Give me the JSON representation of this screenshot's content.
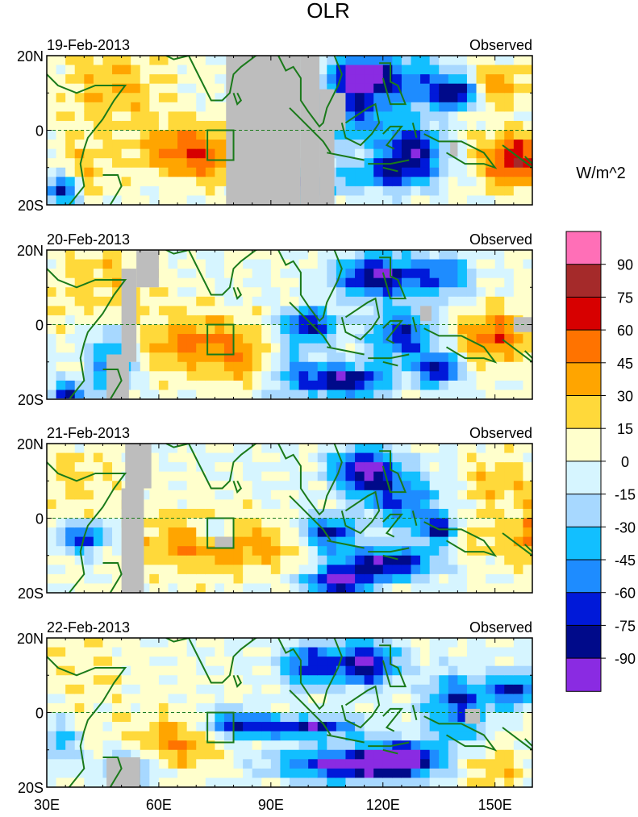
{
  "chart_data": {
    "type": "heatmap",
    "title": "OLR",
    "colorbar": {
      "units_label": "W/m^2",
      "ticks": [
        "90",
        "75",
        "60",
        "45",
        "30",
        "15",
        "0",
        "-15",
        "-30",
        "-45",
        "-60",
        "-75",
        "-90"
      ],
      "colors": [
        "#ff6fb7",
        "#a52a2a",
        "#d70000",
        "#ff7300",
        "#ffa500",
        "#ffd93a",
        "#ffffcc",
        "#d6f5ff",
        "#a7d8ff",
        "#12bfff",
        "#1e8cff",
        "#0019d9",
        "#000a8a",
        "#8a2be2"
      ]
    },
    "missing_color": "#bdbdbd",
    "coast_color": "#1a7a1a",
    "x_ticks": [
      "30E",
      "60E",
      "90E",
      "120E",
      "150E"
    ],
    "y_ticks": [
      "20N",
      "0",
      "20S"
    ],
    "x_range_deg": [
      30,
      160
    ],
    "y_range_deg": [
      -20,
      20
    ],
    "panels": [
      {
        "date": "19-Feb-2013",
        "label": "Observed"
      },
      {
        "date": "20-Feb-2013",
        "label": "Observed"
      },
      {
        "date": "21-Feb-2013",
        "label": "Observed"
      },
      {
        "date": "22-Feb-2013",
        "label": "Observed"
      }
    ]
  }
}
